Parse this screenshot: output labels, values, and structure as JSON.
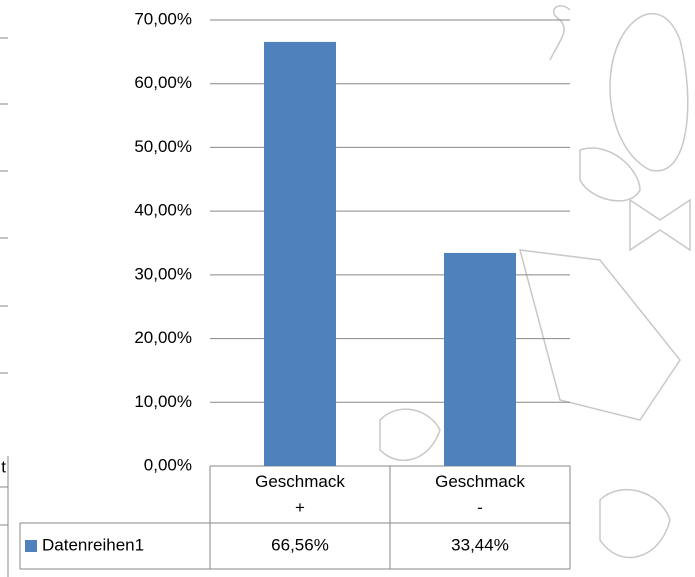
{
  "chart_data": {
    "type": "bar",
    "categories": [
      "Geschmack +",
      "Geschmack -"
    ],
    "series": [
      {
        "name": "Datenreihen1",
        "color": "#4f81bd",
        "values": [
          66.56,
          33.44
        ],
        "value_labels": [
          "66,56%",
          "33,44%"
        ]
      }
    ],
    "ylim": [
      0,
      70
    ],
    "yticks": [
      {
        "value": 0,
        "label": "0,00%"
      },
      {
        "value": 10,
        "label": "10,00%"
      },
      {
        "value": 20,
        "label": "20,00%"
      },
      {
        "value": 30,
        "label": "30,00%"
      },
      {
        "value": 40,
        "label": "40,00%"
      },
      {
        "value": 50,
        "label": "50,00%"
      },
      {
        "value": 60,
        "label": "60,00%"
      },
      {
        "value": 70,
        "label": "70,00%"
      }
    ],
    "grid": true,
    "data_table": true
  },
  "background_fragment": "t"
}
